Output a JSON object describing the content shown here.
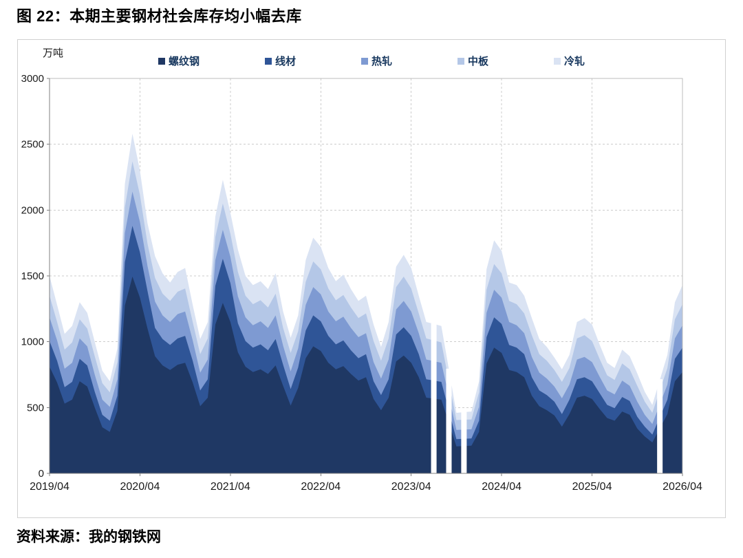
{
  "page": {
    "title": "图 22：本期主要钢材社会库存均小幅去库",
    "source": "资料来源：我的钢铁网",
    "unit_label": "万吨"
  },
  "chart_data": {
    "type": "area",
    "stacked": true,
    "title": "本期主要钢材社会库存均小幅去库",
    "unit": "万吨",
    "grid": true,
    "legend_position": "top",
    "ylim": [
      0,
      3000
    ],
    "y_ticks": [
      0,
      500,
      1000,
      1500,
      2000,
      2500,
      3000
    ],
    "y_tick_labels": [
      "0",
      "500",
      "1000",
      "1500",
      "2000",
      "2500",
      "3000"
    ],
    "x_tick_indices": [
      0,
      12,
      24,
      36,
      48,
      60,
      72,
      84
    ],
    "x_tick_labels": [
      "2019/04",
      "2020/04",
      "2021/04",
      "2022/04",
      "2023/04",
      "2024/04",
      "2025/04",
      "2026/04"
    ],
    "categories": [
      "2019/04",
      "2019/05",
      "2019/06",
      "2019/07",
      "2019/08",
      "2019/09",
      "2019/10",
      "2019/11",
      "2019/12",
      "2020/01",
      "2020/02",
      "2020/03",
      "2020/04",
      "2020/05",
      "2020/06",
      "2020/07",
      "2020/08",
      "2020/09",
      "2020/10",
      "2020/11",
      "2020/12",
      "2021/01",
      "2021/02",
      "2021/03",
      "2021/04",
      "2021/05",
      "2021/06",
      "2021/07",
      "2021/08",
      "2021/09",
      "2021/10",
      "2021/11",
      "2021/12",
      "2022/01",
      "2022/02",
      "2022/03",
      "2022/04",
      "2022/05",
      "2022/06",
      "2022/07",
      "2022/08",
      "2022/09",
      "2022/10",
      "2022/11",
      "2022/12",
      "2023/01",
      "2023/02",
      "2023/03",
      "2023/04",
      "2023/05",
      "2023/06",
      "2023/07",
      "2023/08",
      "2023/09",
      "2023/10",
      "2023/11",
      "2023/12",
      "2024/01",
      "2024/02",
      "2024/03",
      "2024/04",
      "2024/05",
      "2024/06",
      "2024/07",
      "2024/08",
      "2024/09",
      "2024/10",
      "2024/11",
      "2024/12",
      "2025/01",
      "2025/02",
      "2025/03",
      "2025/04",
      "2025/05",
      "2025/06",
      "2025/07",
      "2025/08",
      "2025/09",
      "2025/10",
      "2025/11",
      "2025/12",
      "2026/01",
      "2026/02",
      "2026/03",
      "2026/04"
    ],
    "series": [
      {
        "name": "螺纹钢",
        "code": "rebar",
        "color": "#1f3864",
        "values": [
          810,
          690,
          530,
          560,
          700,
          660,
          500,
          350,
          315,
          475,
          1275,
          1495,
          1335,
          1100,
          890,
          820,
          785,
          825,
          840,
          690,
          510,
          575,
          1130,
          1295,
          1150,
          920,
          810,
          770,
          790,
          755,
          820,
          665,
          515,
          650,
          875,
          965,
          930,
          840,
          790,
          815,
          755,
          705,
          730,
          565,
          480,
          575,
          850,
          895,
          840,
          730,
          575,
          null,
          560,
          null,
          205,
          null,
          210,
          315,
          835,
          955,
          915,
          785,
          770,
          730,
          590,
          510,
          480,
          440,
          355,
          450,
          575,
          590,
          565,
          490,
          420,
          400,
          470,
          445,
          340,
          280,
          235,
          null,
          450,
          700,
          770
        ]
      },
      {
        "name": "线材",
        "code": "wire-rod",
        "color": "#2f5597",
        "values": [
          195,
          165,
          125,
          135,
          170,
          160,
          120,
          95,
          85,
          115,
          330,
          385,
          345,
          285,
          215,
          200,
          190,
          200,
          205,
          165,
          120,
          140,
          295,
          335,
          295,
          220,
          195,
          185,
          190,
          180,
          200,
          160,
          125,
          155,
          210,
          235,
          225,
          205,
          190,
          195,
          180,
          170,
          175,
          135,
          115,
          140,
          205,
          215,
          205,
          175,
          140,
          null,
          135,
          null,
          55,
          null,
          55,
          85,
          200,
          230,
          220,
          190,
          185,
          175,
          140,
          120,
          115,
          105,
          95,
          110,
          140,
          140,
          135,
          120,
          100,
          95,
          110,
          105,
          90,
          75,
          60,
          null,
          110,
          170,
          185
        ]
      },
      {
        "name": "热轧",
        "code": "hot-rolled",
        "color": "#7e9ad2",
        "values": [
          180,
          155,
          140,
          145,
          155,
          145,
          130,
          115,
          105,
          125,
          220,
          260,
          230,
          190,
          200,
          180,
          175,
          185,
          185,
          155,
          135,
          150,
          195,
          220,
          200,
          205,
          180,
          170,
          175,
          170,
          180,
          145,
          135,
          145,
          195,
          215,
          205,
          185,
          175,
          180,
          170,
          160,
          160,
          145,
          125,
          150,
          190,
          200,
          185,
          160,
          150,
          null,
          145,
          null,
          70,
          null,
          70,
          105,
          185,
          210,
          200,
          175,
          170,
          160,
          155,
          135,
          125,
          115,
          120,
          115,
          150,
          155,
          145,
          125,
          110,
          105,
          125,
          115,
          115,
          90,
          80,
          null,
          115,
          155,
          170
        ]
      },
      {
        "name": "中板",
        "code": "medium-plate",
        "color": "#b4c7e7",
        "values": [
          165,
          140,
          145,
          155,
          145,
          135,
          140,
          125,
          110,
          130,
          195,
          230,
          205,
          170,
          180,
          165,
          160,
          170,
          175,
          140,
          140,
          160,
          175,
          200,
          175,
          185,
          165,
          160,
          160,
          155,
          165,
          135,
          140,
          130,
          175,
          195,
          190,
          175,
          160,
          165,
          155,
          145,
          150,
          160,
          135,
          160,
          170,
          185,
          175,
          150,
          160,
          null,
          155,
          null,
          75,
          null,
          75,
          110,
          175,
          195,
          185,
          160,
          160,
          150,
          165,
          140,
          135,
          125,
          125,
          125,
          160,
          165,
          160,
          135,
          115,
          110,
          130,
          125,
          120,
          100,
          85,
          null,
          125,
          145,
          160
        ]
      },
      {
        "name": "冷轧",
        "code": "cold-rolled",
        "color": "#dae3f3",
        "values": [
          150,
          130,
          120,
          125,
          130,
          120,
          110,
          95,
          85,
          105,
          180,
          210,
          185,
          155,
          165,
          155,
          140,
          150,
          155,
          130,
          115,
          125,
          155,
          180,
          160,
          170,
          150,
          145,
          145,
          140,
          155,
          125,
          115,
          120,
          165,
          180,
          170,
          155,
          145,
          155,
          140,
          130,
          135,
          125,
          105,
          125,
          155,
          165,
          155,
          135,
          125,
          null,
          125,
          null,
          55,
          null,
          60,
          85,
          155,
          180,
          170,
          140,
          145,
          135,
          130,
          115,
          105,
          95,
          95,
          100,
          125,
          130,
          125,
          110,
          95,
          90,
          105,
          100,
          95,
          75,
          60,
          null,
          100,
          130,
          145
        ]
      }
    ]
  }
}
